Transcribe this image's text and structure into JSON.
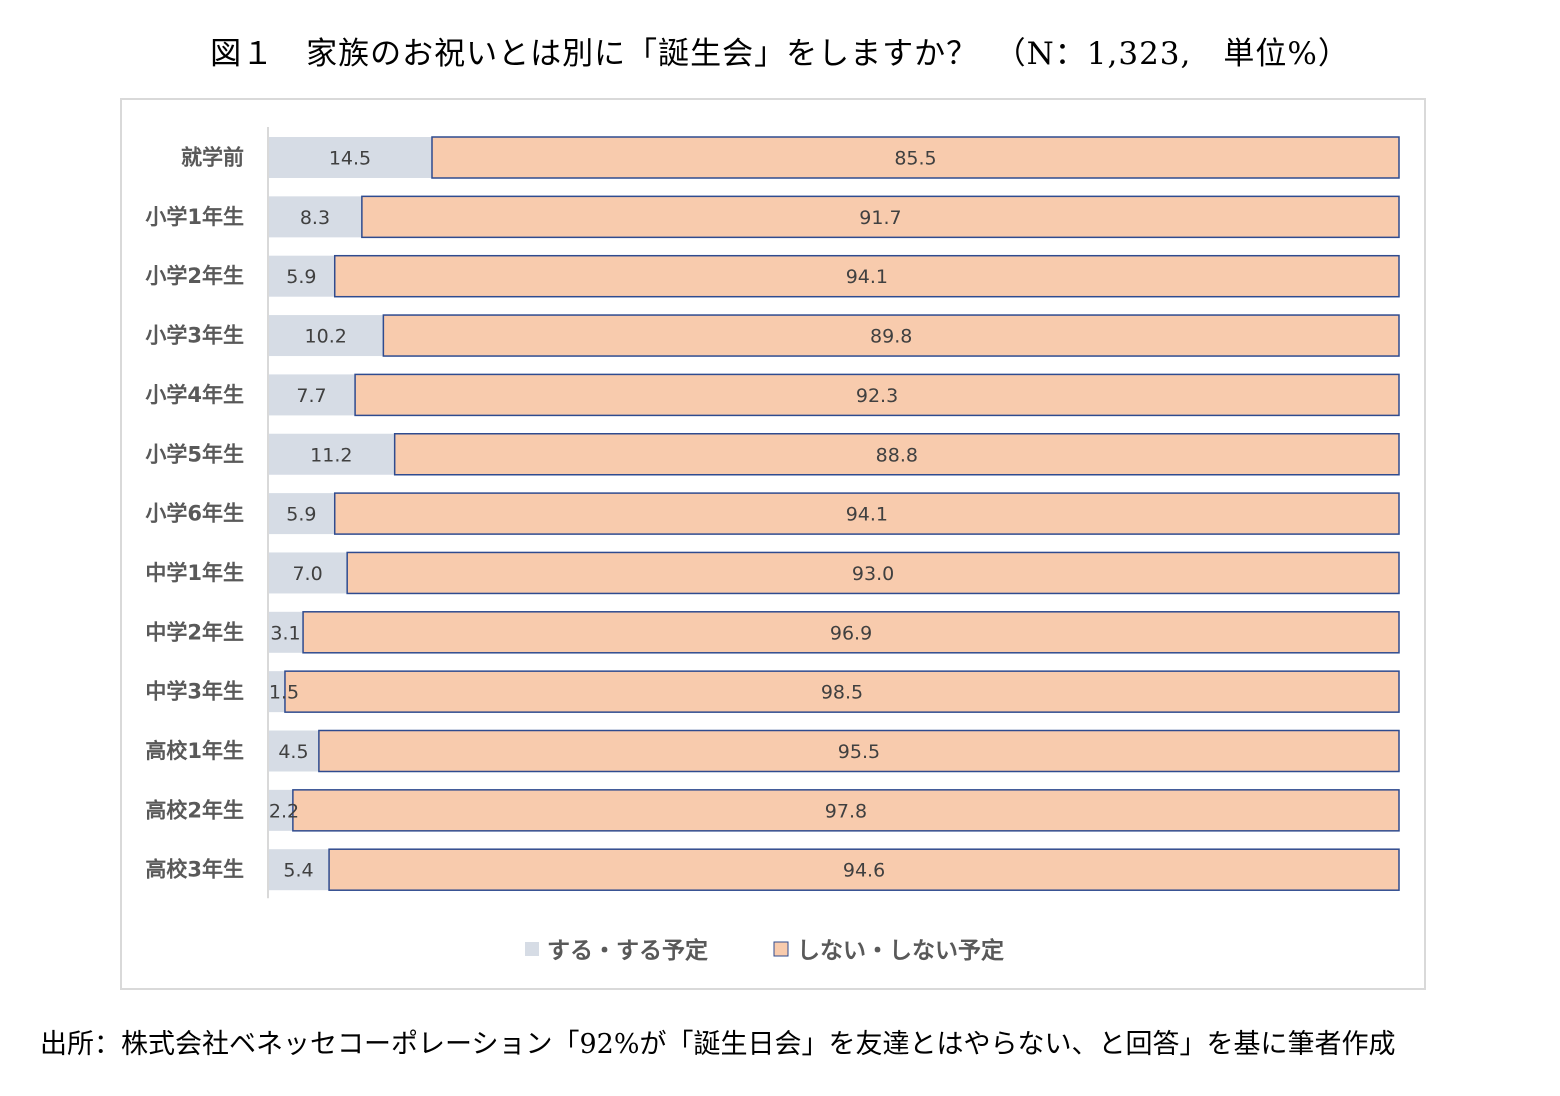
{
  "figure": {
    "title": "図１　家族のお祝いとは別に「誕生会」をしますか？　（N：1,323,　単位%）",
    "source": "出所：株式会社ベネッセコーポレーション「92%が「誕生日会」を友達とはやらない、と回答」を基に筆者作成"
  },
  "chart_data": {
    "type": "bar",
    "orientation": "horizontal",
    "stacked": true,
    "title": "図１　家族のお祝いとは別に「誕生会」をしますか？　（N：1,323,　単位%）",
    "xlabel": "",
    "ylabel": "",
    "xlim": [
      0,
      100
    ],
    "categories": [
      "就学前",
      "小学1年生",
      "小学2年生",
      "小学3年生",
      "小学4年生",
      "小学5年生",
      "小学6年生",
      "中学1年生",
      "中学2年生",
      "中学3年生",
      "高校1年生",
      "高校2年生",
      "高校3年生"
    ],
    "series": [
      {
        "name": "する・する予定",
        "color": "#d6dce5",
        "values": [
          14.5,
          8.3,
          5.9,
          10.2,
          7.7,
          11.2,
          5.9,
          7.0,
          3.1,
          1.5,
          4.5,
          2.2,
          5.4
        ],
        "labels": [
          "14.5",
          "8.3",
          "5.9",
          "10.2",
          "7.7",
          "11.2",
          "5.9",
          "7.0",
          "3.1",
          "1.5",
          "4.5",
          "2.2",
          "5.4"
        ]
      },
      {
        "name": "しない・しない予定",
        "color": "#f8cbad",
        "border": "#2f4b8f",
        "values": [
          85.5,
          91.7,
          94.1,
          89.8,
          92.3,
          88.8,
          94.1,
          93.0,
          96.9,
          98.5,
          95.5,
          97.8,
          94.6
        ],
        "labels": [
          "85.5",
          "91.7",
          "94.1",
          "89.8",
          "92.3",
          "88.8",
          "94.1",
          "93.0",
          "96.9",
          "98.5",
          "95.5",
          "97.8",
          "94.6"
        ]
      }
    ],
    "legend_position": "bottom",
    "grid": false
  }
}
